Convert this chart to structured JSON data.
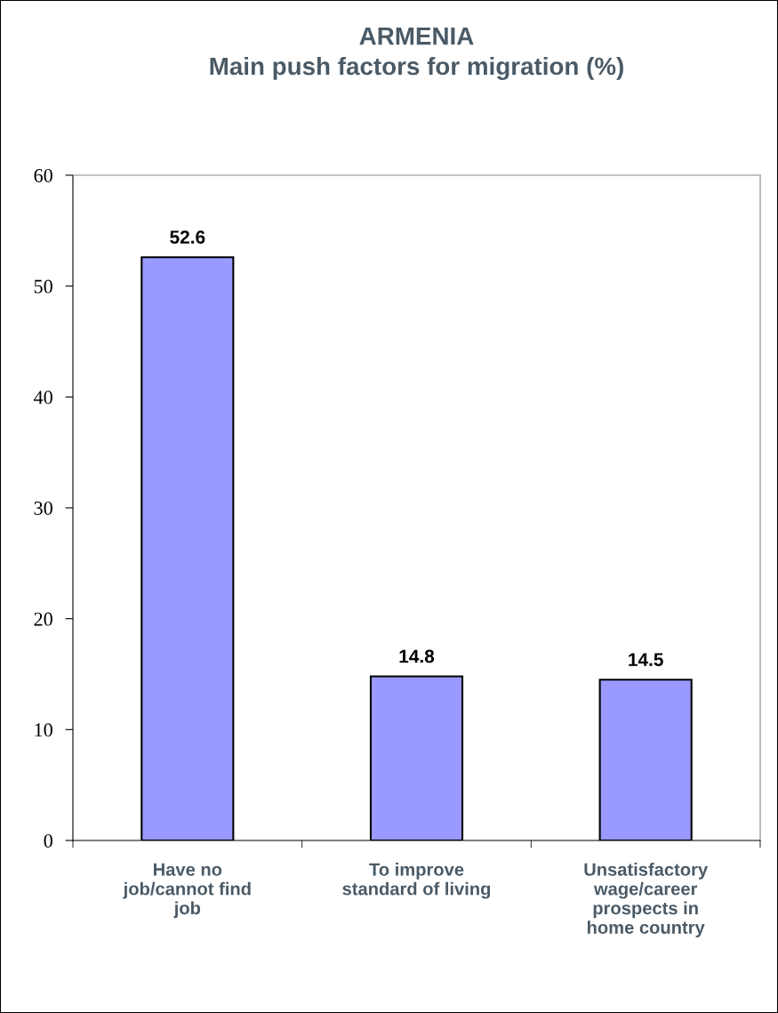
{
  "chart_data": {
    "type": "bar",
    "title": "ARMENIA\nMain push factors for migration (%)",
    "categories": [
      "Have no\njob/cannot find\njob",
      "To improve\nstandard of living",
      "Unsatisfactory\nwage/career\nprospects in\nhome country"
    ],
    "values": [
      52.6,
      14.8,
      14.5
    ],
    "color": "#9999ff",
    "ylim": [
      0,
      60
    ],
    "yticks": [
      0,
      10,
      20,
      30,
      40,
      50,
      60
    ],
    "grid": false,
    "data_labels": true,
    "legend": false
  }
}
